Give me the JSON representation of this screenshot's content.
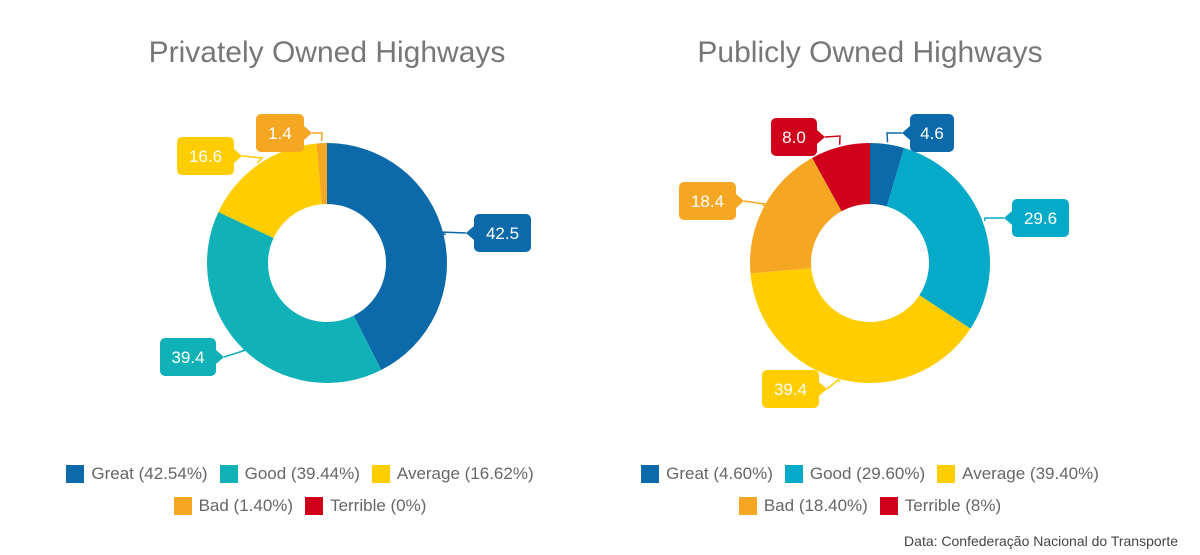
{
  "colors": {
    "great": "#0c6aab",
    "good_private": "#10b2b8",
    "good_public": "#05aac8",
    "average": "#ffcd00",
    "bad": "#f5a623",
    "terrible": "#d0021b",
    "title": "#777777",
    "legend_text": "#666666"
  },
  "chart_data": [
    {
      "type": "pie",
      "title": "Privately Owned Highways",
      "categories": [
        "Great",
        "Good",
        "Average",
        "Bad",
        "Terrible"
      ],
      "values": [
        42.54,
        39.44,
        16.62,
        1.4,
        0
      ],
      "data_labels": [
        "42.5",
        "39.4",
        "16.6",
        "1.4",
        ""
      ],
      "legend": [
        "Great (42.54%)",
        "Good (39.44%)",
        "Average (16.62%)",
        "Bad (1.40%)",
        "Terrible (0%)"
      ],
      "legend_position": "bottom",
      "donut": true
    },
    {
      "type": "pie",
      "title": "Publicly Owned Highways",
      "categories": [
        "Great",
        "Good",
        "Average",
        "Bad",
        "Terrible"
      ],
      "values": [
        4.6,
        29.6,
        39.4,
        18.4,
        8.0
      ],
      "data_labels": [
        "4.6",
        "29.6",
        "39.4",
        "18.4",
        "8.0"
      ],
      "legend": [
        "Great (4.60%)",
        "Good (29.60%)",
        "Average (39.40%)",
        "Bad (18.40%)",
        "Terrible (8%)"
      ],
      "legend_position": "bottom",
      "donut": true
    }
  ],
  "source": "Data: Confederação Nacional do Transporte"
}
